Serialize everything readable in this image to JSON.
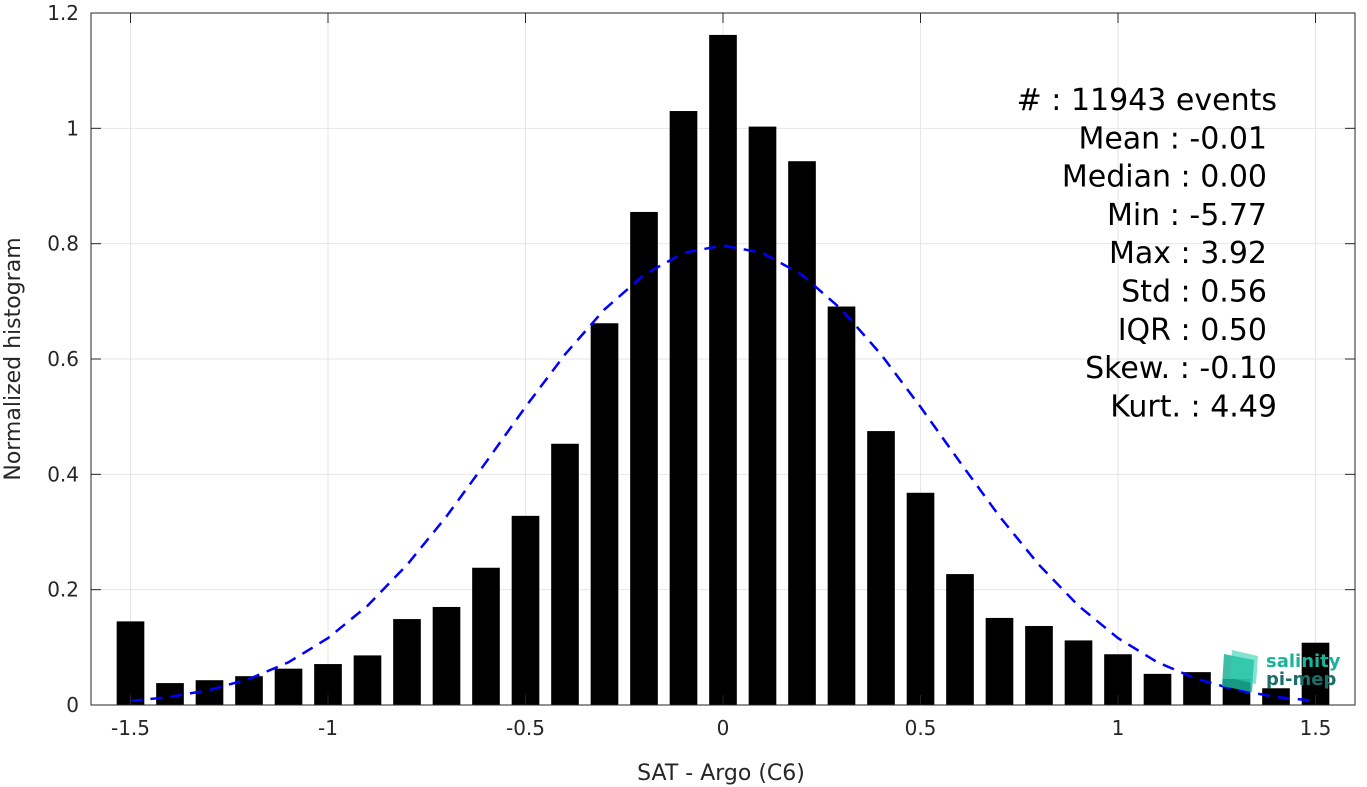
{
  "chart_data": {
    "type": "bar",
    "xlabel": "SAT - Argo (C6)",
    "ylabel": "Normalized histogram",
    "xlim": [
      -1.6,
      1.6
    ],
    "ylim": [
      0,
      1.2
    ],
    "x_ticks": [
      -1.5,
      -1,
      -0.5,
      0,
      0.5,
      1,
      1.5
    ],
    "x_tick_labels": [
      "-1.5",
      "-1",
      "-0.5",
      "0",
      "0.5",
      "1",
      "1.5"
    ],
    "y_ticks": [
      0,
      0.2,
      0.4,
      0.6,
      0.8,
      1,
      1.2
    ],
    "y_tick_labels": [
      "0",
      "0.2",
      "0.4",
      "0.6",
      "0.8",
      "1",
      "1.2"
    ],
    "grid": true,
    "bar_centers": [
      -1.5,
      -1.4,
      -1.3,
      -1.2,
      -1.1,
      -1.0,
      -0.9,
      -0.8,
      -0.7,
      -0.6,
      -0.5,
      -0.4,
      -0.3,
      -0.2,
      -0.1,
      0.0,
      0.1,
      0.2,
      0.3,
      0.4,
      0.5,
      0.6,
      0.7,
      0.8,
      0.9,
      1.0,
      1.1,
      1.2,
      1.3,
      1.4,
      1.5
    ],
    "bar_values": [
      0.145,
      0.038,
      0.043,
      0.05,
      0.063,
      0.071,
      0.086,
      0.149,
      0.17,
      0.238,
      0.328,
      0.453,
      0.662,
      0.855,
      1.03,
      1.162,
      1.003,
      0.943,
      0.691,
      0.475,
      0.368,
      0.227,
      0.151,
      0.137,
      0.112,
      0.088,
      0.054,
      0.057,
      0.045,
      0.029,
      0.108
    ],
    "bar_color": "#000000",
    "fit_curve": {
      "style": "dashed",
      "color": "#0000ff",
      "x": [
        -1.5,
        -1.4,
        -1.3,
        -1.2,
        -1.1,
        -1.0,
        -0.9,
        -0.8,
        -0.7,
        -0.6,
        -0.5,
        -0.4,
        -0.3,
        -0.2,
        -0.1,
        0.0,
        0.1,
        0.2,
        0.3,
        0.4,
        0.5,
        0.6,
        0.7,
        0.8,
        0.9,
        1.0,
        1.1,
        1.2,
        1.3,
        1.4,
        1.5
      ],
      "y": [
        0.007,
        0.014,
        0.026,
        0.045,
        0.074,
        0.116,
        0.172,
        0.243,
        0.327,
        0.421,
        0.517,
        0.608,
        0.686,
        0.746,
        0.784,
        0.797,
        0.784,
        0.746,
        0.686,
        0.608,
        0.517,
        0.421,
        0.327,
        0.243,
        0.172,
        0.116,
        0.074,
        0.045,
        0.026,
        0.014,
        0.007
      ]
    },
    "stats_lines": [
      "#  : 11943 events",
      "Mean : -0.01",
      "Median : 0.00",
      "Min : -5.77",
      "Max : 3.92",
      "Std : 0.56",
      "IQR : 0.50",
      "Skew. : -0.10",
      "Kurt. : 4.49"
    ]
  },
  "logo": {
    "line1": "salinity",
    "line2": "pi-mep",
    "color_line1": "#1ab39a",
    "color_line2": "#1a6f6a"
  }
}
